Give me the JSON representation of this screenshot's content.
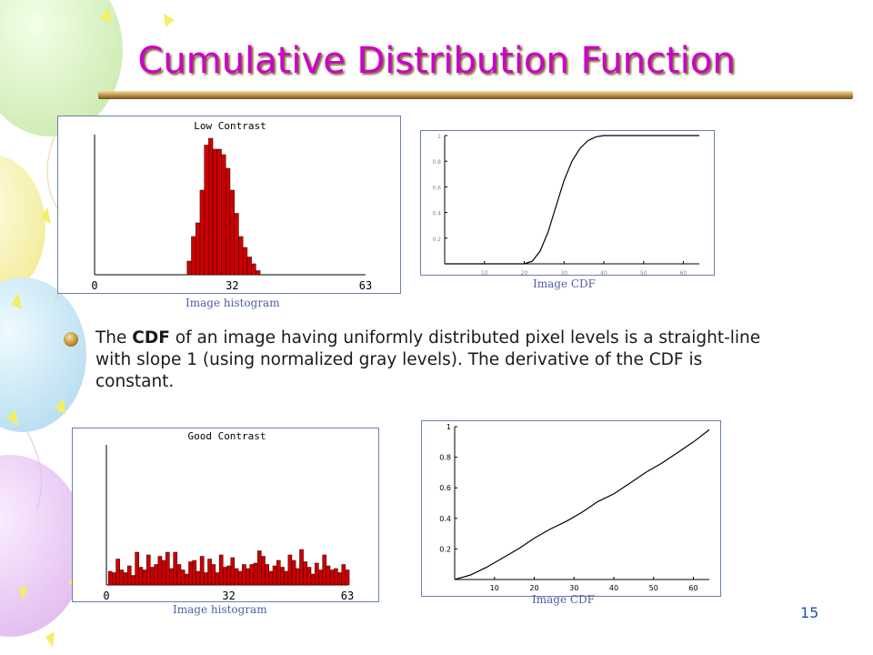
{
  "slide": {
    "title": "Cumulative Distribution Function",
    "body_before": "The ",
    "body_bold": "CDF",
    "body_after": " of an image having uniformly distributed pixel levels is a straight-line with slope 1 (using normalized gray levels). The derivative of the CDF is constant.",
    "page_number": "15",
    "colors": {
      "title": "#cc00cc",
      "bars": "#cc0000",
      "caption": "#5060a8"
    }
  },
  "figures": {
    "low_hist_caption": "Image histogram",
    "low_cdf_caption": "Image CDF",
    "good_hist_caption": "Image histogram",
    "good_cdf_caption": "Image CDF"
  },
  "chart_data": [
    {
      "type": "bar",
      "title": "Low Contrast",
      "x_ticks": [
        "0",
        "32",
        "63"
      ],
      "xlim": [
        0,
        63
      ],
      "x": [
        22,
        23,
        24,
        25,
        26,
        27,
        28,
        29,
        30,
        31,
        32,
        33,
        34,
        35,
        36,
        37,
        38
      ],
      "values": [
        0.1,
        0.28,
        0.38,
        0.62,
        0.95,
        1.0,
        0.92,
        0.92,
        0.88,
        0.78,
        0.62,
        0.45,
        0.28,
        0.2,
        0.13,
        0.08,
        0.03
      ]
    },
    {
      "type": "line",
      "title": "",
      "xlim": [
        0,
        64
      ],
      "ylim": [
        0,
        1
      ],
      "x_ticks": [
        "10",
        "20",
        "30",
        "40",
        "50",
        "60"
      ],
      "y_ticks": [
        "0.2",
        "0.4",
        "0.6",
        "0.8",
        "1"
      ],
      "x": [
        0,
        20,
        22,
        24,
        26,
        28,
        30,
        32,
        34,
        36,
        38,
        40,
        64
      ],
      "y": [
        0,
        0,
        0.02,
        0.1,
        0.25,
        0.45,
        0.65,
        0.8,
        0.9,
        0.96,
        0.99,
        1,
        1
      ]
    },
    {
      "type": "bar",
      "title": "Good Contrast",
      "x_ticks": [
        "0",
        "32",
        "63"
      ],
      "xlim": [
        0,
        63
      ],
      "x": [
        1,
        2,
        3,
        4,
        5,
        6,
        7,
        8,
        9,
        10,
        11,
        12,
        13,
        14,
        15,
        16,
        17,
        18,
        19,
        20,
        21,
        22,
        23,
        24,
        25,
        26,
        27,
        28,
        29,
        30,
        31,
        32,
        33,
        34,
        35,
        36,
        37,
        38,
        39,
        40,
        41,
        42,
        43,
        44,
        45,
        46,
        47,
        48,
        49,
        50,
        51,
        52,
        53,
        54,
        55,
        56,
        57,
        58,
        59,
        60,
        61,
        62,
        63
      ],
      "values": [
        0.1,
        0.09,
        0.19,
        0.11,
        0.09,
        0.14,
        0.07,
        0.24,
        0.13,
        0.11,
        0.22,
        0.13,
        0.15,
        0.21,
        0.18,
        0.24,
        0.12,
        0.24,
        0.15,
        0.11,
        0.08,
        0.17,
        0.18,
        0.1,
        0.21,
        0.09,
        0.19,
        0.15,
        0.09,
        0.22,
        0.13,
        0.14,
        0.2,
        0.12,
        0.1,
        0.15,
        0.12,
        0.15,
        0.16,
        0.25,
        0.21,
        0.15,
        0.1,
        0.14,
        0.18,
        0.13,
        0.1,
        0.22,
        0.18,
        0.12,
        0.26,
        0.17,
        0.13,
        0.08,
        0.16,
        0.11,
        0.22,
        0.14,
        0.11,
        0.12,
        0.09,
        0.15,
        0.11
      ]
    },
    {
      "type": "line",
      "title": "",
      "xlim": [
        0,
        64
      ],
      "ylim": [
        0,
        1
      ],
      "x_ticks": [
        "10",
        "20",
        "30",
        "40",
        "50",
        "60"
      ],
      "y_ticks": [
        "0.2",
        "0.4",
        "0.6",
        "0.8",
        "1"
      ],
      "x": [
        0,
        4,
        8,
        12,
        16,
        20,
        24,
        28,
        32,
        36,
        40,
        44,
        48,
        52,
        56,
        60,
        64
      ],
      "y": [
        0,
        0.03,
        0.08,
        0.14,
        0.2,
        0.27,
        0.33,
        0.38,
        0.44,
        0.51,
        0.56,
        0.63,
        0.7,
        0.76,
        0.83,
        0.9,
        0.98
      ]
    }
  ]
}
